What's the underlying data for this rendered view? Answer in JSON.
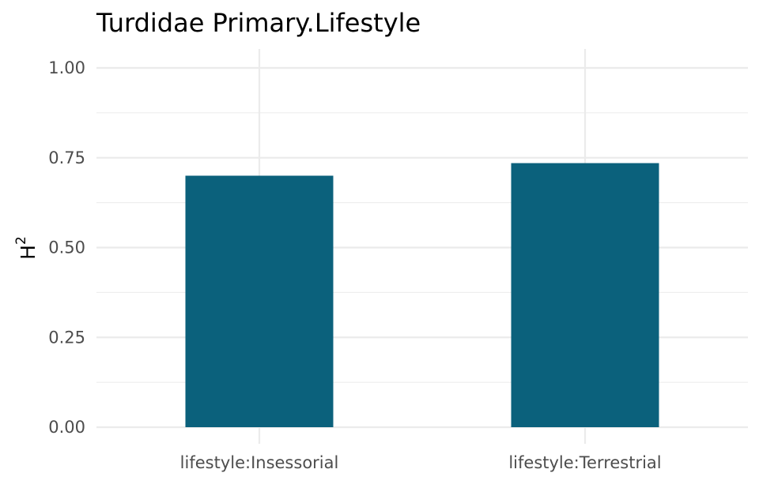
{
  "chart_data": {
    "type": "bar",
    "title": "Turdidae Primary.Lifestyle",
    "xlabel": "",
    "ylabel_base": "H",
    "ylabel_superscript": "2",
    "categories": [
      "lifestyle:Insessorial",
      "lifestyle:Terrestrial"
    ],
    "values": [
      0.7,
      0.735
    ],
    "ylim": [
      0,
      1.0
    ],
    "yticks": [
      0.0,
      0.25,
      0.5,
      0.75,
      1.0
    ],
    "ytick_labels": [
      "0.00",
      "0.25",
      "0.50",
      "0.75",
      "1.00"
    ],
    "grid": true,
    "bar_color": "#0b617c"
  }
}
